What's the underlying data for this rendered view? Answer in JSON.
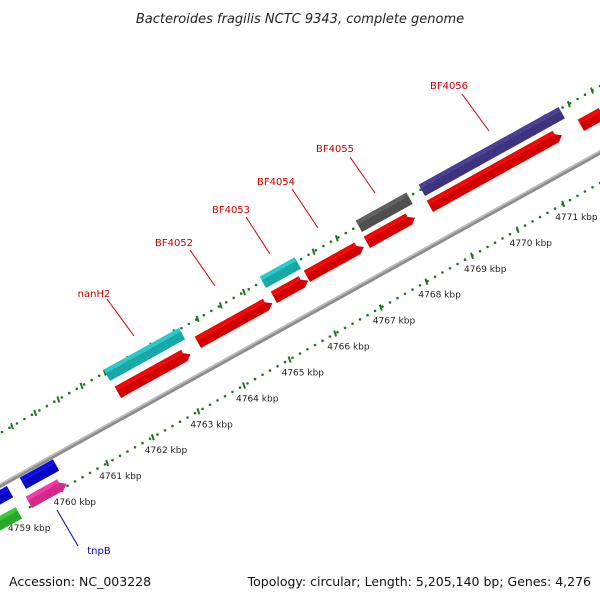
{
  "title": "Bacteroides fragilis NCTC 9343, complete genome",
  "footer": {
    "accession": "Accession: NC_003228",
    "summary": "Topology: circular; Length: 5,205,140 bp; Genes: 4,276"
  },
  "scale": {
    "unit": "kbp",
    "ticks": [
      {
        "kb": 4759,
        "label": "4759 kbp"
      },
      {
        "kb": 4760,
        "label": "4760 kbp"
      },
      {
        "kb": 4761,
        "label": "4761 kbp"
      },
      {
        "kb": 4762,
        "label": "4762 kbp"
      },
      {
        "kb": 4763,
        "label": "4763 kbp"
      },
      {
        "kb": 4764,
        "label": "4764 kbp"
      },
      {
        "kb": 4765,
        "label": "4765 kbp"
      },
      {
        "kb": 4766,
        "label": "4766 kbp"
      },
      {
        "kb": 4767,
        "label": "4767 kbp"
      },
      {
        "kb": 4768,
        "label": "4768 kbp"
      },
      {
        "kb": 4769,
        "label": "4769 kbp"
      },
      {
        "kb": 4770,
        "label": "4770 kbp"
      },
      {
        "kb": 4771,
        "label": "4771 kbp"
      }
    ]
  },
  "gene_labels": [
    {
      "name": "nanH2",
      "color": "#cc0000"
    },
    {
      "name": "BF4052",
      "color": "#cc0000"
    },
    {
      "name": "BF4053",
      "color": "#cc0000"
    },
    {
      "name": "BF4054",
      "color": "#cc0000"
    },
    {
      "name": "BF4055",
      "color": "#cc0000"
    },
    {
      "name": "BF4056",
      "color": "#cc0000"
    },
    {
      "name": "tnpB",
      "color": "#0000aa"
    }
  ],
  "colors": {
    "backbone": "#8c8c8c",
    "tick_green": "#1a7a1a",
    "cds_red": "#ff0000",
    "cds_cyan": "#22cccc",
    "cds_purple": "#4a3e9a",
    "cds_gray": "#606060",
    "cds_blue": "#0a0aee",
    "cds_magenta": "#ff33aa",
    "cds_green": "#33cc33"
  }
}
